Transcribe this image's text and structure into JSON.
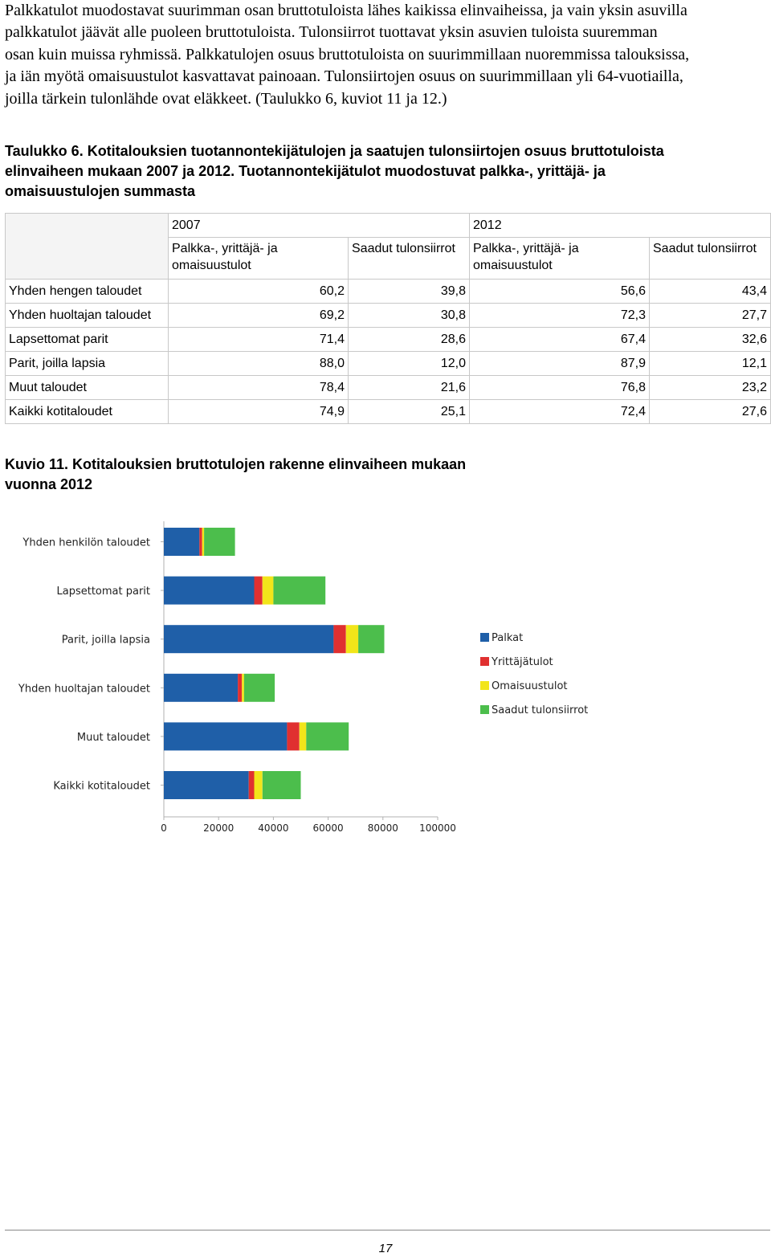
{
  "intro_lines": [
    "Palkkatulot muodostavat suurimman osan bruttotuloista lähes kaikissa elinvaiheissa, ja vain yksin asuvilla",
    "palkkatulot jäävät alle puoleen bruttotuloista. Tulonsiirrot tuottavat yksin asuvien tuloista suuremman",
    "osan kuin muissa ryhmissä. Palkkatulojen osuus bruttotuloista on suurimmillaan nuoremmissa talouksissa,",
    "ja iän myötä omaisuustulot kasvattavat painoaan. Tulonsiirtojen osuus on suurimmillaan yli 64-vuotiailla,",
    "joilla tärkein tulonlähde ovat eläkkeet. (Taulukko 6, kuviot 11 ja 12.)"
  ],
  "table_caption_lines": [
    "Taulukko 6. Kotitalouksien tuotannontekijätulojen ja saatujen tulonsiirtojen osuus bruttotuloista",
    "elinvaiheen mukaan 2007 ja 2012. Tuotannontekijätulot muodostuvat palkka-, yrittäjä- ja",
    "omaisuustulojen summasta"
  ],
  "table": {
    "year1": "2007",
    "year2": "2012",
    "col_a": "Palkka-, yrittäjä- ja omaisuustulot",
    "col_b": "Saadut tulonsiirrot",
    "rows": [
      {
        "label": "Yhden hengen taloudet",
        "a2007": "60,2",
        "b2007": "39,8",
        "a2012": "56,6",
        "b2012": "43,4"
      },
      {
        "label": "Yhden huoltajan taloudet",
        "a2007": "69,2",
        "b2007": "30,8",
        "a2012": "72,3",
        "b2012": "27,7"
      },
      {
        "label": "Lapsettomat parit",
        "a2007": "71,4",
        "b2007": "28,6",
        "a2012": "67,4",
        "b2012": "32,6"
      },
      {
        "label": "Parit, joilla lapsia",
        "a2007": "88,0",
        "b2007": "12,0",
        "a2012": "87,9",
        "b2012": "12,1"
      },
      {
        "label": "Muut taloudet",
        "a2007": "78,4",
        "b2007": "21,6",
        "a2012": "76,8",
        "b2012": "23,2"
      },
      {
        "label": "Kaikki kotitaloudet",
        "a2007": "74,9",
        "b2007": "25,1",
        "a2012": "72,4",
        "b2012": "27,6"
      }
    ]
  },
  "figure_caption_lines": [
    "Kuvio 11. Kotitalouksien bruttotulojen rakenne elinvaiheen mukaan",
    "vuonna 2012"
  ],
  "chart_data": {
    "type": "bar",
    "orientation": "horizontal",
    "stacked": true,
    "categories": [
      "Yhden henkilön taloudet",
      "Lapsettomat parit",
      "Parit, joilla lapsia",
      "Yhden huoltajan taloudet",
      "Muut taloudet",
      "Kaikki kotitaloudet"
    ],
    "series": [
      {
        "name": "Palkat",
        "color": "#1f5fa8",
        "values": [
          13000,
          33000,
          62000,
          27000,
          45000,
          31000
        ]
      },
      {
        "name": "Yrittäjätulot",
        "color": "#e03030",
        "values": [
          1000,
          3000,
          4500,
          1500,
          4500,
          2000
        ]
      },
      {
        "name": "Omaisuustulot",
        "color": "#f2e51a",
        "values": [
          700,
          4000,
          4500,
          800,
          2500,
          3000
        ]
      },
      {
        "name": "Saadut tulonsiirrot",
        "color": "#4cbe4c",
        "values": [
          11300,
          19000,
          9500,
          11200,
          15500,
          14000
        ]
      }
    ],
    "xlim": [
      0,
      100000
    ],
    "xticks": [
      "0",
      "20000",
      "40000",
      "60000",
      "80000",
      "100000"
    ],
    "legend_position": "right",
    "grid": false
  },
  "page_number": "17"
}
